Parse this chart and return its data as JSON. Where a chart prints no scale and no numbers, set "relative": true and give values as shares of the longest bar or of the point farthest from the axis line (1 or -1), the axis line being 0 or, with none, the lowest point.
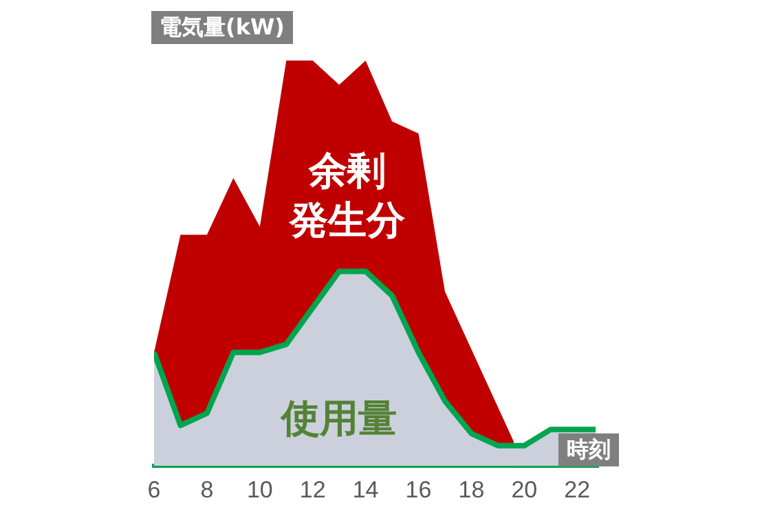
{
  "chart_data": {
    "type": "area",
    "relative": true,
    "ylabel": "電気量(kW)",
    "xlabel": "時刻",
    "xlim": [
      6,
      22.8
    ],
    "xticks": [
      6,
      8,
      10,
      12,
      14,
      16,
      18,
      20,
      22
    ],
    "tick_labels": "x",
    "grid": false,
    "legend": false,
    "marker": "none",
    "series": [
      {
        "color": "#c00000",
        "x": [
          6,
          7,
          8,
          9,
          10,
          11,
          12,
          13,
          14,
          15,
          16,
          17,
          19.6
        ],
        "values": [
          0.28,
          0.57,
          0.57,
          0.71,
          0.59,
          1,
          1,
          0.94,
          1,
          0.85,
          0.82,
          0.43,
          0.06
        ]
      },
      {
        "color": "#00a550",
        "x": [
          6,
          7,
          8,
          9,
          10,
          11,
          12,
          13,
          14,
          15,
          16,
          17,
          18,
          19,
          20,
          21,
          22.7
        ],
        "values": [
          0.28,
          0.1,
          0.13,
          0.28,
          0.28,
          0.3,
          0.39,
          0.48,
          0.48,
          0.42,
          0.28,
          0.16,
          0.08,
          0.05,
          0.05,
          0.09,
          0.09
        ]
      }
    ],
    "annotations": [
      "余剰発生分",
      "使用量"
    ]
  }
}
